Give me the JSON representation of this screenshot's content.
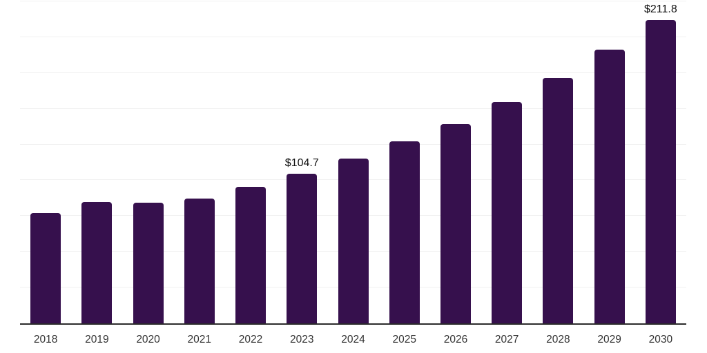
{
  "chart_data": {
    "type": "bar",
    "title": "",
    "xlabel": "",
    "ylabel": "",
    "categories": [
      "2018",
      "2019",
      "2020",
      "2021",
      "2022",
      "2023",
      "2024",
      "2025",
      "2026",
      "2027",
      "2028",
      "2029",
      "2030"
    ],
    "values": [
      77.3,
      85.0,
      84.2,
      87.1,
      95.5,
      104.7,
      115.1,
      127.2,
      139.4,
      154.5,
      171.7,
      191.5,
      211.8
    ],
    "value_labels": {
      "2023": "$104.7",
      "2030": "$211.8"
    },
    "ylim": [
      0,
      225
    ],
    "gridline_step": 25,
    "grid": "horizontal",
    "legend_position": "none",
    "colors": {
      "bar": "#36104D",
      "gridline": "#F1F1F1",
      "axis_line": "#2B2B2B",
      "tick_label": "#333333",
      "value_label": "#111111",
      "background": "#FFFFFF"
    }
  }
}
